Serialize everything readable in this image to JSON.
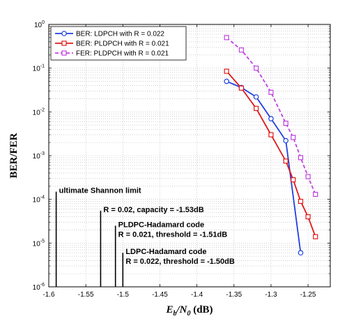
{
  "chart_data": {
    "type": "line",
    "xlabel": "E_b/N_0 (dB)",
    "ylabel": "BER/FER",
    "xlim": [
      -1.6,
      -1.22
    ],
    "ylim": [
      1e-06,
      1
    ],
    "yscale": "log",
    "grid": true,
    "legend_position": "top-left",
    "x_ticks": [
      -1.6,
      -1.55,
      -1.5,
      -1.45,
      -1.4,
      -1.35,
      -1.3,
      -1.25
    ],
    "x_tick_labels": [
      "-1.6",
      "-1.55",
      "-1.5",
      "-1.45",
      "-1.4",
      "-1.35",
      "-1.3",
      "-1.25"
    ],
    "y_ticks": [
      {
        "value": 1e-06,
        "base": "10",
        "exp": "-6"
      },
      {
        "value": 1e-05,
        "base": "10",
        "exp": "-5"
      },
      {
        "value": 0.0001,
        "base": "10",
        "exp": "-4"
      },
      {
        "value": 0.001,
        "base": "10",
        "exp": "-3"
      },
      {
        "value": 0.01,
        "base": "10",
        "exp": "-2"
      },
      {
        "value": 0.1,
        "base": "10",
        "exp": "-1"
      },
      {
        "value": 1,
        "base": "10",
        "exp": "0"
      }
    ],
    "series": [
      {
        "name": "BER: LDPCH with R = 0.022",
        "color": "#1f3fe0",
        "marker": "circle",
        "dash": "solid",
        "x": [
          -1.36,
          -1.34,
          -1.32,
          -1.3,
          -1.28,
          -1.26
        ],
        "y": [
          0.05,
          0.036,
          0.022,
          0.007,
          0.0022,
          6e-06
        ]
      },
      {
        "name": "BER: PLDPCH with R = 0.021",
        "color": "#e01818",
        "marker": "square",
        "dash": "solid",
        "x": [
          -1.36,
          -1.34,
          -1.32,
          -1.3,
          -1.28,
          -1.27,
          -1.26,
          -1.25,
          -1.24
        ],
        "y": [
          0.085,
          0.035,
          0.012,
          0.003,
          0.00075,
          0.00028,
          9e-05,
          4e-05,
          1.4e-05
        ]
      },
      {
        "name": "FER: PLDPCH with R = 0.021",
        "color": "#c040e0",
        "marker": "square",
        "dash": "dashed",
        "x": [
          -1.36,
          -1.34,
          -1.32,
          -1.3,
          -1.28,
          -1.27,
          -1.26,
          -1.25,
          -1.24
        ],
        "y": [
          0.5,
          0.26,
          0.1,
          0.028,
          0.0055,
          0.0026,
          0.0009,
          0.00033,
          0.00013
        ]
      }
    ],
    "reference_lines": [
      {
        "x": -1.59,
        "top": 0.00015,
        "label": "ultimate Shannon limit"
      },
      {
        "x": -1.53,
        "top": 5.5e-05,
        "label": "R = 0.02, capacity = -1.53dB"
      },
      {
        "x": -1.51,
        "top": 2.5e-05,
        "label1": "PLDPC-Hadamard code",
        "label2": "R = 0.021, threshold = -1.51dB"
      },
      {
        "x": -1.5,
        "top": 6e-06,
        "label1": "LDPC-Hadamard code",
        "label2": "R = 0.022, threshold = -1.50dB"
      }
    ]
  }
}
